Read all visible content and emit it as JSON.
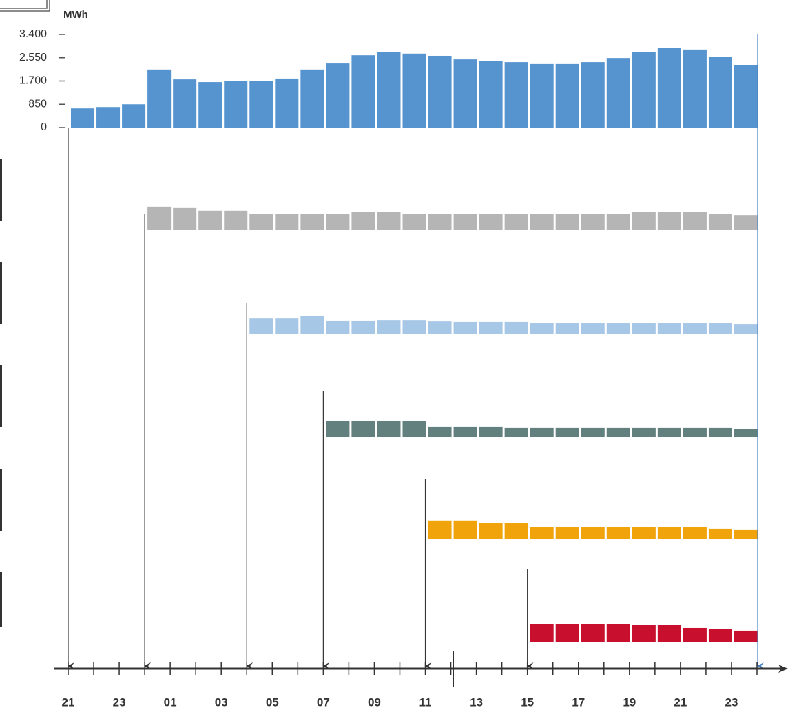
{
  "chart_data": {
    "type": "bar",
    "y_label": "MWh",
    "categories": [
      "21",
      null,
      "23",
      null,
      "01",
      null,
      "03",
      null,
      "05",
      null,
      "07",
      null,
      "09",
      null,
      "11",
      null,
      "13",
      null,
      "15",
      null,
      "17",
      null,
      "19",
      null,
      "21",
      null,
      "23"
    ],
    "ylim": [
      0,
      3400
    ],
    "yticks": [
      0,
      850,
      {
        "value": 1700,
        "label": "1.700"
      },
      {
        "value": 2550,
        "label": "2.550"
      },
      {
        "value": 3400,
        "label": "3.400"
      }
    ],
    "series": [
      {
        "color": "#5694cf",
        "values": [
          700,
          750,
          850,
          2120,
          1760,
          1660,
          1710,
          1710,
          1790,
          2120,
          2340,
          2640,
          2750,
          2700,
          2620,
          2490,
          2440,
          2390,
          2320,
          2320,
          2390,
          2540,
          2750,
          2900,
          2850,
          2570,
          2270
        ]
      },
      {
        "color": "#b5b5b5",
        "values": [
          null,
          null,
          null,
          860,
          810,
          710,
          710,
          580,
          580,
          600,
          600,
          660,
          660,
          600,
          600,
          600,
          600,
          580,
          580,
          580,
          580,
          600,
          660,
          660,
          660,
          600,
          550
        ]
      },
      {
        "color": "#a7c7e7",
        "values": [
          null,
          null,
          null,
          null,
          null,
          null,
          null,
          550,
          550,
          630,
          480,
          480,
          500,
          500,
          450,
          430,
          430,
          430,
          380,
          380,
          380,
          400,
          400,
          400,
          400,
          380,
          350
        ]
      },
      {
        "color": "#62807d",
        "values": [
          null,
          null,
          null,
          null,
          null,
          null,
          null,
          null,
          null,
          null,
          580,
          580,
          580,
          580,
          380,
          380,
          380,
          330,
          330,
          330,
          330,
          330,
          330,
          330,
          330,
          330,
          280
        ]
      },
      {
        "color": "#f0a30a",
        "values": [
          null,
          null,
          null,
          null,
          null,
          null,
          null,
          null,
          null,
          null,
          null,
          null,
          null,
          null,
          660,
          660,
          600,
          600,
          430,
          430,
          430,
          430,
          430,
          430,
          430,
          380,
          330
        ]
      },
      {
        "color": "#c8102e",
        "values": [
          null,
          null,
          null,
          null,
          null,
          null,
          null,
          null,
          null,
          null,
          null,
          null,
          null,
          null,
          null,
          null,
          null,
          null,
          680,
          680,
          680,
          680,
          630,
          630,
          530,
          480,
          430
        ]
      }
    ]
  }
}
